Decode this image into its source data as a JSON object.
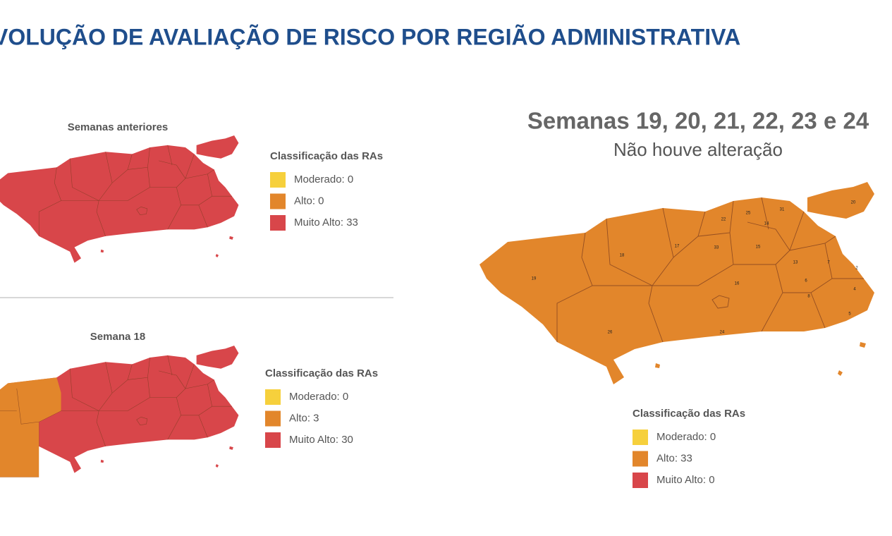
{
  "header": {
    "title": "VOLUÇÃO DE AVALIAÇÃO DE RISCO POR REGIÃO ADMINISTRATIVA"
  },
  "panels": [
    {
      "title": "Semanas anteriores",
      "legend": {
        "title": "Classificação das RAs",
        "items": [
          {
            "label": "Moderado: 0",
            "color": "#f6d03c"
          },
          {
            "label": "Alto: 0",
            "color": "#e2862b"
          },
          {
            "label": "Muito Alto: 33",
            "color": "#d8464a"
          }
        ]
      }
    },
    {
      "title": "Semana 18",
      "legend": {
        "title": "Classificação das RAs",
        "items": [
          {
            "label": "Moderado: 0",
            "color": "#f6d03c"
          },
          {
            "label": "Alto: 3",
            "color": "#e2862b"
          },
          {
            "label": "Muito Alto: 30",
            "color": "#d8464a"
          }
        ]
      }
    },
    {
      "title": "Semanas 19, 20, 21, 22, 23 e 24",
      "subtitle": "Não houve alteração",
      "legend": {
        "title": "Classificação das RAs",
        "items": [
          {
            "label": "Moderado: 0",
            "color": "#f6d03c"
          },
          {
            "label": "Alto: 33",
            "color": "#e2862b"
          },
          {
            "label": "Muito Alto: 0",
            "color": "#d8464a"
          }
        ]
      },
      "region_labels": [
        "19",
        "26",
        "18",
        "17",
        "33",
        "24",
        "16",
        "25",
        "22",
        "14",
        "31",
        "15",
        "13",
        "20",
        "6",
        "8",
        "7",
        "4",
        "5",
        "2"
      ]
    }
  ]
}
